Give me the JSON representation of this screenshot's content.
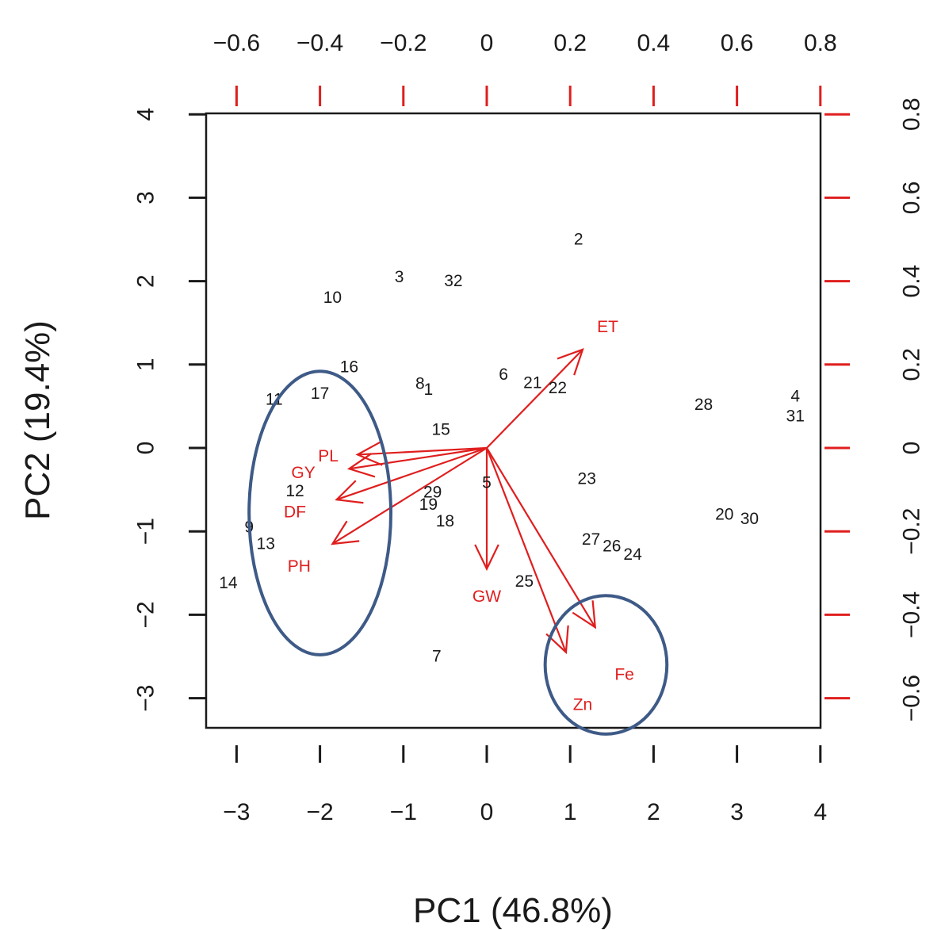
{
  "chart_data": {
    "type": "scatter",
    "subtype": "biplot",
    "xlabel": "PC1 (46.8%)",
    "ylabel": "PC2 (19.4%)",
    "xlim": [
      -3.4,
      4.0
    ],
    "ylim": [
      -3.35,
      4.0
    ],
    "x_ticks": [
      -3,
      -2,
      -1,
      0,
      1,
      2,
      3,
      4
    ],
    "y_ticks": [
      -3,
      -2,
      -1,
      0,
      1,
      2,
      3,
      4
    ],
    "x2_ticks": [
      -0.6,
      -0.4,
      -0.2,
      0.0,
      0.2,
      0.4,
      0.6,
      0.8
    ],
    "y2_ticks": [
      -0.6,
      -0.4,
      -0.2,
      0.0,
      0.2,
      0.4,
      0.6,
      0.8
    ],
    "secondary_axis_color": "#e01e1e",
    "loading_color": "#e01e1e",
    "ellipse_color": "#3e5a87",
    "observations": [
      {
        "label": "1",
        "x": -0.7,
        "y": 0.7
      },
      {
        "label": "2",
        "x": 1.1,
        "y": 2.5
      },
      {
        "label": "3",
        "x": -1.05,
        "y": 2.05
      },
      {
        "label": "4",
        "x": 3.7,
        "y": 0.62
      },
      {
        "label": "5",
        "x": 0.0,
        "y": -0.42
      },
      {
        "label": "6",
        "x": 0.2,
        "y": 0.88
      },
      {
        "label": "7",
        "x": -0.6,
        "y": -2.5
      },
      {
        "label": "8",
        "x": -0.8,
        "y": 0.77
      },
      {
        "label": "9",
        "x": -2.85,
        "y": -0.95
      },
      {
        "label": "10",
        "x": -1.85,
        "y": 1.8
      },
      {
        "label": "11",
        "x": -2.55,
        "y": 0.58
      },
      {
        "label": "12",
        "x": -2.3,
        "y": -0.52
      },
      {
        "label": "13",
        "x": -2.65,
        "y": -1.15
      },
      {
        "label": "14",
        "x": -3.1,
        "y": -1.62
      },
      {
        "label": "15",
        "x": -0.55,
        "y": 0.22
      },
      {
        "label": "16",
        "x": -1.65,
        "y": 0.97
      },
      {
        "label": "17",
        "x": -2.0,
        "y": 0.65
      },
      {
        "label": "18",
        "x": -0.5,
        "y": -0.88
      },
      {
        "label": "19",
        "x": -0.7,
        "y": -0.68
      },
      {
        "label": "20",
        "x": 2.85,
        "y": -0.8
      },
      {
        "label": "21",
        "x": 0.55,
        "y": 0.78
      },
      {
        "label": "22",
        "x": 0.85,
        "y": 0.72
      },
      {
        "label": "23",
        "x": 1.2,
        "y": -0.37
      },
      {
        "label": "24",
        "x": 1.75,
        "y": -1.28
      },
      {
        "label": "25",
        "x": 0.45,
        "y": -1.6
      },
      {
        "label": "26",
        "x": 1.5,
        "y": -1.18
      },
      {
        "label": "27",
        "x": 1.25,
        "y": -1.1
      },
      {
        "label": "28",
        "x": 2.6,
        "y": 0.52
      },
      {
        "label": "29",
        "x": -0.65,
        "y": -0.53
      },
      {
        "label": "30",
        "x": 3.15,
        "y": -0.85
      },
      {
        "label": "31",
        "x": 3.7,
        "y": 0.38
      },
      {
        "label": "32",
        "x": -0.4,
        "y": 2.0
      }
    ],
    "loadings": [
      {
        "label": "ET",
        "x": 1.15,
        "y": 1.18,
        "lx": 1.45,
        "ly": 1.45
      },
      {
        "label": "PL",
        "x": -1.55,
        "y": -0.08,
        "lx": -1.9,
        "ly": -0.1
      },
      {
        "label": "GY",
        "x": -1.65,
        "y": -0.25,
        "lx": -2.2,
        "ly": -0.3
      },
      {
        "label": "DF",
        "x": -1.8,
        "y": -0.62,
        "lx": -2.3,
        "ly": -0.77
      },
      {
        "label": "PH",
        "x": -1.85,
        "y": -1.15,
        "lx": -2.25,
        "ly": -1.42
      },
      {
        "label": "GW",
        "x": 0.0,
        "y": -1.45,
        "lx": 0.0,
        "ly": -1.78
      },
      {
        "label": "Fe",
        "x": 1.3,
        "y": -2.15,
        "lx": 1.65,
        "ly": -2.72
      },
      {
        "label": "Zn",
        "x": 0.95,
        "y": -2.45,
        "lx": 1.15,
        "ly": -3.08
      }
    ],
    "ellipses": [
      {
        "cx": -2.0,
        "cy": -0.78,
        "rx": 0.85,
        "ry": 1.7
      },
      {
        "cx": 1.43,
        "cy": -2.6,
        "rx": 0.73,
        "ry": 0.83
      }
    ]
  }
}
